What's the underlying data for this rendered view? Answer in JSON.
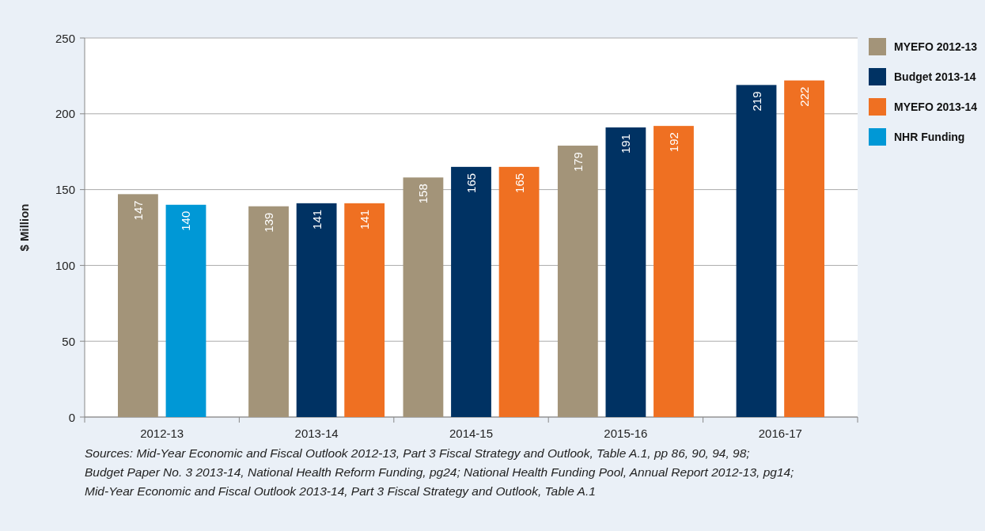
{
  "chart_data": {
    "type": "bar",
    "ylabel": "$ Million",
    "categories": [
      "2012-13",
      "2013-14",
      "2014-15",
      "2015-16",
      "2016-17"
    ],
    "series": [
      {
        "name": "MYEFO 2012-13",
        "color": "#a39479",
        "values": [
          147,
          139,
          158,
          179,
          null
        ]
      },
      {
        "name": "Budget 2013-14",
        "color": "#003263",
        "values": [
          null,
          141,
          165,
          191,
          219
        ]
      },
      {
        "name": "MYEFO 2013-14",
        "color": "#ef7022",
        "values": [
          null,
          141,
          165,
          192,
          222
        ]
      },
      {
        "name": "NHR Funding",
        "color": "#0098d6",
        "values": [
          140,
          null,
          null,
          null,
          null
        ]
      }
    ],
    "ylim": [
      0,
      250
    ],
    "yticks": [
      0,
      50,
      100,
      150,
      200,
      250
    ],
    "grid": "y",
    "legend": "right",
    "data_labels": true,
    "annotations": [
      "Sources: Mid-Year Economic and Fiscal Outlook 2012-13, Part 3 Fiscal Strategy and Outlook, Table A.1, pp 86, 90, 94, 98; Budget Paper No. 3 2013-14, National Health Reform Funding, pg24; National Health Funding Pool, Annual Report 2012-13, pg14; Mid-Year Economic and Fiscal Outlook 2013-14, Part 3 Fiscal Strategy and Outlook, Table A.1"
    ]
  }
}
